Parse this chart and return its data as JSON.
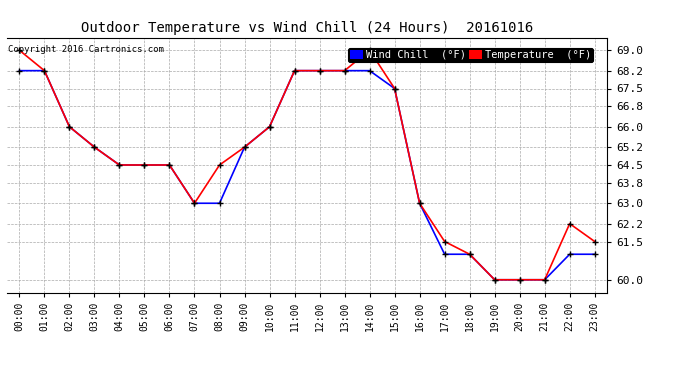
{
  "title": "Outdoor Temperature vs Wind Chill (24 Hours)  20161016",
  "copyright": "Copyright 2016 Cartronics.com",
  "background_color": "#ffffff",
  "plot_bg_color": "#ffffff",
  "grid_color": "#aaaaaa",
  "hours": [
    "00:00",
    "01:00",
    "02:00",
    "03:00",
    "04:00",
    "05:00",
    "06:00",
    "07:00",
    "08:00",
    "09:00",
    "10:00",
    "11:00",
    "12:00",
    "13:00",
    "14:00",
    "15:00",
    "16:00",
    "17:00",
    "18:00",
    "19:00",
    "20:00",
    "21:00",
    "22:00",
    "23:00"
  ],
  "temperature": [
    69.0,
    68.2,
    66.0,
    65.2,
    64.5,
    64.5,
    64.5,
    63.0,
    64.5,
    65.2,
    66.0,
    68.2,
    68.2,
    68.2,
    69.0,
    67.5,
    63.0,
    61.5,
    61.0,
    60.0,
    60.0,
    60.0,
    62.2,
    61.5
  ],
  "wind_chill": [
    68.2,
    68.2,
    66.0,
    65.2,
    64.5,
    64.5,
    64.5,
    63.0,
    63.0,
    65.2,
    66.0,
    68.2,
    68.2,
    68.2,
    68.2,
    67.5,
    63.0,
    61.0,
    61.0,
    60.0,
    60.0,
    60.0,
    61.0,
    61.0
  ],
  "temp_color": "#ff0000",
  "wind_chill_color": "#0000ff",
  "marker_color": "#000000",
  "ylim_min": 59.5,
  "ylim_max": 69.5,
  "yticks": [
    60.0,
    61.5,
    62.2,
    63.0,
    63.8,
    64.5,
    65.2,
    66.0,
    66.8,
    67.5,
    68.2,
    69.0
  ],
  "legend_wind_chill_bg": "#0000ff",
  "legend_temp_bg": "#ff0000"
}
